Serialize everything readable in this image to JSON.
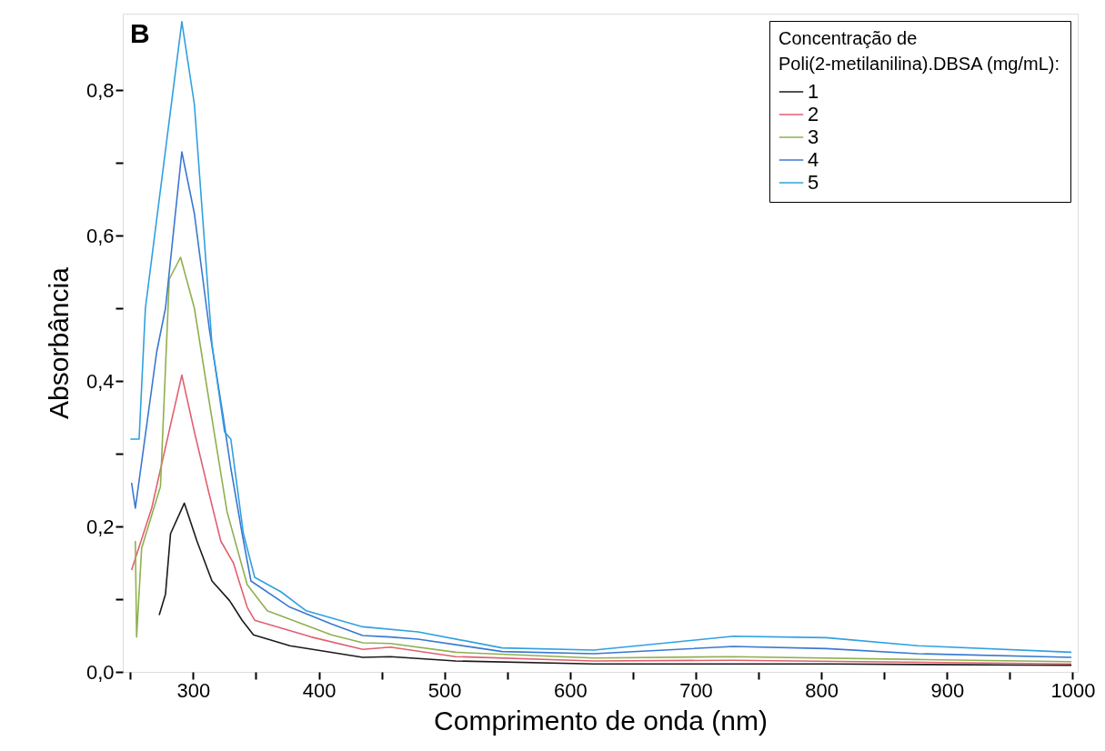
{
  "chart_data": {
    "type": "line",
    "xlabel": "Comprimento de onda (nm)",
    "ylabel": "Absorbância",
    "legend_title": "Concentração de\nPoli(2-metilanilina).DBSA (mg/mL):",
    "legend": "top right",
    "grid": false,
    "marker": "none",
    "line_style": "solid",
    "annotations": [
      "B"
    ],
    "xlim": [
      244,
      1004
    ],
    "ylim": [
      0,
      0.905
    ],
    "xticks": [
      {
        "value": 250,
        "label": null
      },
      300,
      {
        "value": 350,
        "label": null
      },
      400,
      {
        "value": 450,
        "label": null
      },
      500,
      {
        "value": 550,
        "label": null
      },
      600,
      {
        "value": 650,
        "label": null
      },
      700,
      {
        "value": 750,
        "label": null
      },
      800,
      {
        "value": 850,
        "label": null
      },
      900,
      {
        "value": 950,
        "label": null
      },
      1000
    ],
    "yticks": [
      {
        "value": 0,
        "label": "0,0"
      },
      {
        "value": 0.1,
        "label": null
      },
      {
        "value": 0.2,
        "label": "0,2"
      },
      {
        "value": 0.3,
        "label": null
      },
      {
        "value": 0.4,
        "label": "0,4"
      },
      {
        "value": 0.5,
        "label": null
      },
      {
        "value": 0.6,
        "label": "0,6"
      },
      {
        "value": 0.7,
        "label": null
      },
      {
        "value": 0.8,
        "label": "0,8"
      }
    ],
    "series": [
      {
        "name": "1",
        "color": "#1a1a1a",
        "x": [
          273,
          278,
          282,
          293,
          303,
          315,
          329,
          339,
          348,
          377,
          435,
          457,
          509,
          619,
          804,
          999
        ],
        "values": [
          0.078,
          0.107,
          0.19,
          0.232,
          0.18,
          0.125,
          0.098,
          0.071,
          0.051,
          0.036,
          0.02,
          0.021,
          0.015,
          0.011,
          0.011,
          0.009
        ]
      },
      {
        "name": "2",
        "color": "#e06070",
        "x": [
          251,
          267,
          291,
          301,
          312,
          322,
          332,
          343,
          349,
          394,
          435,
          457,
          509,
          619,
          730,
          999
        ],
        "values": [
          0.14,
          0.225,
          0.408,
          0.33,
          0.25,
          0.18,
          0.15,
          0.089,
          0.071,
          0.048,
          0.031,
          0.034,
          0.021,
          0.015,
          0.016,
          0.011
        ]
      },
      {
        "name": "3",
        "color": "#90b050",
        "x": [
          254,
          255,
          259,
          274,
          281,
          290,
          301,
          312,
          327,
          343,
          359,
          410,
          435,
          457,
          509,
          619,
          730,
          877,
          999
        ],
        "values": [
          0.18,
          0.048,
          0.17,
          0.255,
          0.54,
          0.57,
          0.5,
          0.38,
          0.22,
          0.12,
          0.084,
          0.051,
          0.04,
          0.039,
          0.027,
          0.019,
          0.021,
          0.017,
          0.014
        ]
      },
      {
        "name": "4",
        "color": "#3a78d0",
        "x": [
          251,
          254,
          271,
          278,
          291,
          301,
          313,
          324,
          330,
          339,
          346,
          377,
          410,
          435,
          457,
          479,
          546,
          619,
          730,
          804,
          877,
          999
        ],
        "values": [
          0.26,
          0.225,
          0.44,
          0.5,
          0.715,
          0.63,
          0.47,
          0.35,
          0.28,
          0.19,
          0.125,
          0.089,
          0.066,
          0.05,
          0.048,
          0.045,
          0.028,
          0.025,
          0.035,
          0.032,
          0.025,
          0.02
        ]
      },
      {
        "name": "5",
        "color": "#30a0e0",
        "x": [
          250,
          257,
          262,
          291,
          301,
          315,
          325,
          330,
          340,
          349,
          370,
          390,
          435,
          479,
          546,
          619,
          730,
          804,
          877,
          999
        ],
        "values": [
          0.32,
          0.32,
          0.5,
          0.894,
          0.78,
          0.45,
          0.33,
          0.32,
          0.19,
          0.13,
          0.11,
          0.084,
          0.062,
          0.055,
          0.033,
          0.03,
          0.049,
          0.047,
          0.036,
          0.027
        ]
      }
    ]
  }
}
